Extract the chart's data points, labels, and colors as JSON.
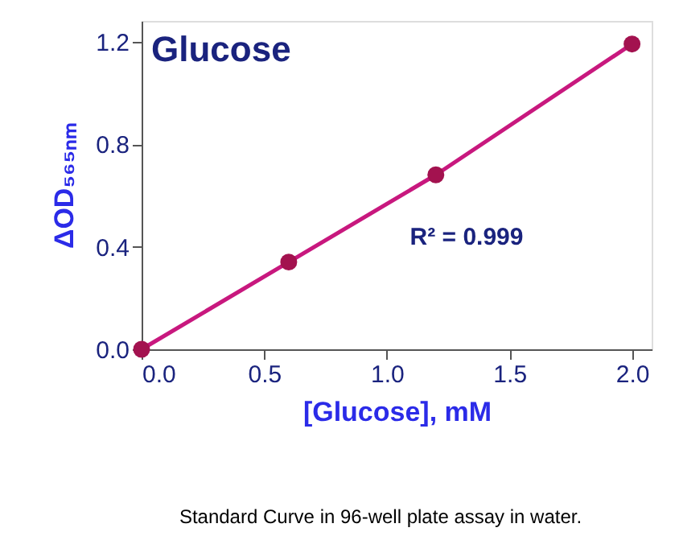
{
  "chart_data": {
    "type": "scatter",
    "title": "Glucose",
    "xlabel": "[Glucose], mM",
    "ylabel": "ΔOD₅₆₅ₙₘ",
    "x": [
      0,
      0.6,
      1.2,
      2.0
    ],
    "series": [
      {
        "type": "line",
        "color": "#c8187e",
        "values": [
          0,
          0.34,
          0.68,
          1.19
        ],
        "marker": "none"
      },
      {
        "color": "#a3124f",
        "values": [
          0,
          0.34,
          0.68,
          1.19
        ],
        "marker": "circle"
      }
    ],
    "xlim": [
      0,
      2.08
    ],
    "ylim": [
      0,
      1.28
    ],
    "xticks": [
      {
        "value": 0,
        "label": "0.0"
      },
      {
        "value": 0.5,
        "label": "0.5"
      },
      {
        "value": 1,
        "label": "1.0"
      },
      {
        "value": 1.5,
        "label": "1.5"
      },
      {
        "value": 2,
        "label": "2.0"
      }
    ],
    "yticks": [
      {
        "value": 0,
        "label": "0.0"
      },
      {
        "value": 0.4,
        "label": "0.4"
      },
      {
        "value": 0.8,
        "label": "0.8"
      },
      {
        "value": 1.2,
        "label": "1.2"
      }
    ],
    "grid": false,
    "annotations": [
      "R² = 0.999",
      "Standard Curve in 96-well plate assay in water."
    ]
  }
}
